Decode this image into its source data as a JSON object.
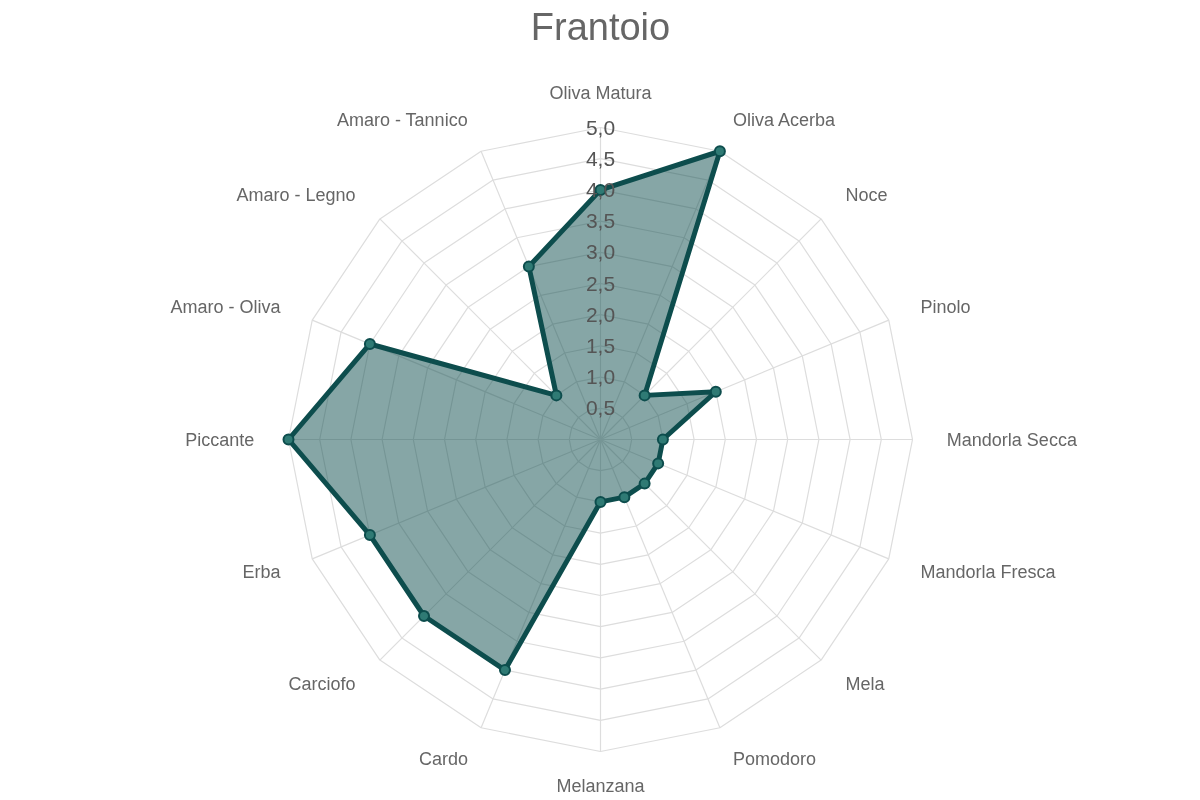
{
  "chart_data": {
    "type": "radar",
    "title": "Frantoio",
    "categories": [
      "Oliva Matura",
      "Oliva Acerba",
      "Noce",
      "Pinolo",
      "Mandorla Secca",
      "Mandorla Fresca",
      "Mela",
      "Pomodoro",
      "Melanzana",
      "Cardo",
      "Carciofo",
      "Erba",
      "Piccante",
      "Amaro - Oliva",
      "Amaro - Legno",
      "Amaro - Tannico"
    ],
    "series": [
      {
        "color": "#0d4d4d",
        "values": [
          4.0,
          5.0,
          1.0,
          2.0,
          1.0,
          1.0,
          1.0,
          1.0,
          1.0,
          4.0,
          4.0,
          4.0,
          5.0,
          4.0,
          1.0,
          3.0
        ]
      }
    ],
    "ylim": [
      0,
      5
    ],
    "yticks": [
      {
        "value": 0.5,
        "label": "0,5"
      },
      {
        "value": 1.0,
        "label": "1,0"
      },
      {
        "value": 1.5,
        "label": "1,5"
      },
      {
        "value": 2.0,
        "label": "2,0"
      },
      {
        "value": 2.5,
        "label": "2,5"
      },
      {
        "value": 3.0,
        "label": "3,0"
      },
      {
        "value": 3.5,
        "label": "3,5"
      },
      {
        "value": 4.0,
        "label": "4,0"
      },
      {
        "value": 4.5,
        "label": "4,5"
      },
      {
        "value": 5.0,
        "label": "5,0"
      }
    ],
    "grid": true,
    "marker": "circle"
  }
}
